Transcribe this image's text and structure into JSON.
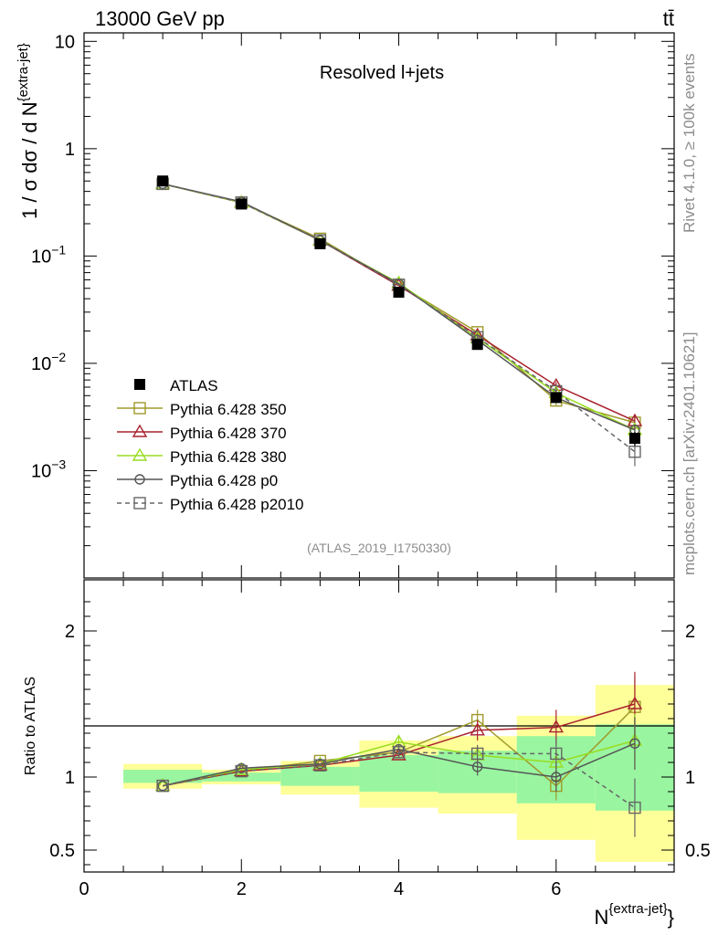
{
  "header": {
    "energy_label": "13000 GeV pp",
    "process_label": "tt̄"
  },
  "side_labels": {
    "rivet": "Rivet 4.1.0, ≥ 100k events",
    "mcplots": "mcplots.cern.ch [arXiv:2401.10621]"
  },
  "chart_data": [
    {
      "type": "line",
      "panel": "main",
      "title": "Resolved l+jets",
      "analysis_id": "(ATLAS_2019_I1750330)",
      "ylabel": "1 / σ dσ / d N^{extra-jet}",
      "yscale": "log",
      "ylim": [
        0.0001,
        12
      ],
      "xlim": [
        0,
        7.5
      ],
      "y_ticks": [
        {
          "value": 10,
          "base": "10",
          "exp": ""
        },
        {
          "value": 1,
          "base": "1",
          "exp": ""
        },
        {
          "value": 0.1,
          "base": "10",
          "exp": "−1"
        },
        {
          "value": 0.01,
          "base": "10",
          "exp": "−2"
        },
        {
          "value": 0.001,
          "base": "10",
          "exp": "−3"
        }
      ],
      "legend_position": "bottom-left",
      "x": [
        1,
        2,
        3,
        4,
        5,
        6,
        7
      ],
      "data": {
        "name": "ATLAS",
        "color": "#000000",
        "values": [
          0.5,
          0.305,
          0.13,
          0.046,
          0.015,
          0.0048,
          0.002
        ],
        "errors": [
          0.03,
          0.012,
          0.006,
          0.003,
          0.0012,
          0.0005,
          0.0003
        ]
      },
      "series": [
        {
          "name": "Pythia 6.428 350",
          "color": "#a09a2b",
          "marker": "square-open",
          "dash": "solid",
          "values": [
            0.47,
            0.315,
            0.145,
            0.054,
            0.0195,
            0.0045,
            0.0028
          ],
          "errors": [
            0,
            0,
            0,
            0,
            0.0008,
            0.0005,
            0.0004
          ]
        },
        {
          "name": "Pythia 6.428 370",
          "color": "#a8222e",
          "marker": "triangle-open",
          "dash": "solid",
          "values": [
            0.47,
            0.315,
            0.14,
            0.053,
            0.0183,
            0.0062,
            0.0029
          ],
          "errors": [
            0,
            0,
            0,
            0,
            0.0007,
            0.0005,
            0.0004
          ]
        },
        {
          "name": "Pythia 6.428 380",
          "color": "#99dd22",
          "marker": "triangle-open",
          "dash": "solid",
          "values": [
            0.47,
            0.315,
            0.14,
            0.056,
            0.0172,
            0.0053,
            0.0024
          ],
          "errors": [
            0,
            0,
            0,
            0,
            0.0007,
            0.0005,
            0.0003
          ]
        },
        {
          "name": "Pythia 6.428 p0",
          "color": "#555555",
          "marker": "circle-open",
          "dash": "solid",
          "values": [
            0.47,
            0.32,
            0.14,
            0.055,
            0.0165,
            0.0048,
            0.0024
          ],
          "errors": [
            0,
            0,
            0,
            0,
            0.0007,
            0.0005,
            0.0003
          ]
        },
        {
          "name": "Pythia 6.428 p2010",
          "color": "#666666",
          "marker": "square-open",
          "dash": "dashed",
          "values": [
            0.47,
            0.315,
            0.14,
            0.054,
            0.0175,
            0.0055,
            0.0015
          ],
          "errors": [
            0,
            0,
            0,
            0,
            0.0007,
            0.0005,
            0.0004
          ]
        }
      ]
    },
    {
      "type": "line",
      "panel": "ratio",
      "ylabel": "Ratio to ATLAS",
      "xlabel": "N^{extra-jet}",
      "xlim": [
        0,
        7.5
      ],
      "ylim": [
        0.35,
        2.35
      ],
      "y_ticks": [
        0.5,
        1,
        2
      ],
      "x_ticks": [
        0,
        2,
        4,
        6
      ],
      "bins": [
        [
          0.5,
          1.5
        ],
        [
          1.5,
          2.5
        ],
        [
          2.5,
          3.5
        ],
        [
          3.5,
          4.5
        ],
        [
          4.5,
          5.5
        ],
        [
          5.5,
          6.5
        ],
        [
          6.5,
          7.5
        ]
      ],
      "band_inner": [
        [
          0.96,
          1.05
        ],
        [
          0.97,
          1.03
        ],
        [
          0.94,
          1.07
        ],
        [
          0.9,
          1.15
        ],
        [
          0.89,
          1.18
        ],
        [
          0.82,
          1.28
        ],
        [
          0.77,
          1.36
        ]
      ],
      "band_outer": [
        [
          0.92,
          1.09
        ],
        [
          0.95,
          1.05
        ],
        [
          0.88,
          1.11
        ],
        [
          0.79,
          1.25
        ],
        [
          0.75,
          1.28
        ],
        [
          0.57,
          1.42
        ],
        [
          0.42,
          1.63
        ]
      ],
      "x": [
        1,
        2,
        3,
        4,
        5,
        6,
        7
      ],
      "series": [
        {
          "name": "Pythia 6.428 350",
          "values": [
            0.94,
            1.04,
            1.11,
            1.17,
            1.39,
            0.94,
            1.48
          ],
          "errors": [
            0,
            0,
            0,
            0.02,
            0.07,
            0.1,
            0.2
          ]
        },
        {
          "name": "Pythia 6.428 370",
          "values": [
            0.94,
            1.04,
            1.08,
            1.15,
            1.32,
            1.34,
            1.5
          ],
          "errors": [
            0,
            0,
            0,
            0.02,
            0.07,
            0.12,
            0.22
          ]
        },
        {
          "name": "Pythia 6.428 380",
          "values": [
            0.94,
            1.05,
            1.09,
            1.24,
            1.15,
            1.1,
            1.25
          ],
          "errors": [
            0,
            0,
            0,
            0.04,
            0.06,
            0.1,
            0.18
          ]
        },
        {
          "name": "Pythia 6.428 p0",
          "values": [
            0.94,
            1.06,
            1.09,
            1.19,
            1.07,
            1.0,
            1.23
          ],
          "errors": [
            0,
            0,
            0,
            0.03,
            0.06,
            0.1,
            0.18
          ]
        },
        {
          "name": "Pythia 6.428 p2010",
          "values": [
            0.94,
            1.04,
            1.08,
            1.17,
            1.16,
            1.16,
            0.79
          ],
          "errors": [
            0,
            0,
            0,
            0.03,
            0.06,
            0.1,
            0.2
          ]
        }
      ]
    }
  ]
}
